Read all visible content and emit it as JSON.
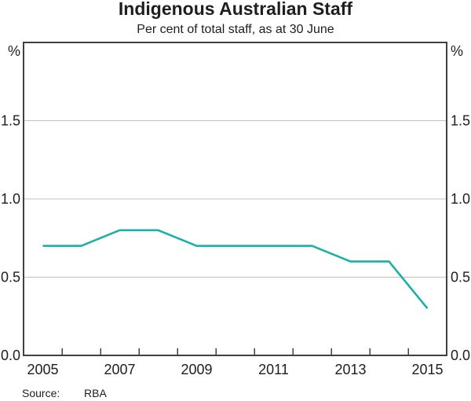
{
  "chart_data": {
    "type": "line",
    "title": "Indigenous Australian Staff",
    "subtitle": "Per cent of total staff, as at 30 June",
    "unit_label": "%",
    "x": [
      2005,
      2006,
      2007,
      2008,
      2009,
      2010,
      2011,
      2012,
      2013,
      2014,
      2015
    ],
    "values": [
      0.7,
      0.7,
      0.8,
      0.8,
      0.7,
      0.7,
      0.7,
      0.7,
      0.6,
      0.6,
      0.3
    ],
    "ylim": [
      0.0,
      2.0
    ],
    "yticks": [
      0,
      0.5,
      1.0,
      1.5
    ],
    "ytick_labels": [
      "0.0",
      "0.5",
      "1.0",
      "1.5"
    ],
    "xtick_labels": [
      "2005",
      "2007",
      "2009",
      "2011",
      "2013",
      "2015"
    ],
    "grid": true,
    "legend": "none",
    "y_axis_labels_on_both_sides": true,
    "source_label": "Source:",
    "source_value": "RBA"
  },
  "colors": {
    "line": "#1db0a8",
    "axis": "#404040",
    "grid": "#c0c0c0",
    "text": "#1e1e1e"
  }
}
